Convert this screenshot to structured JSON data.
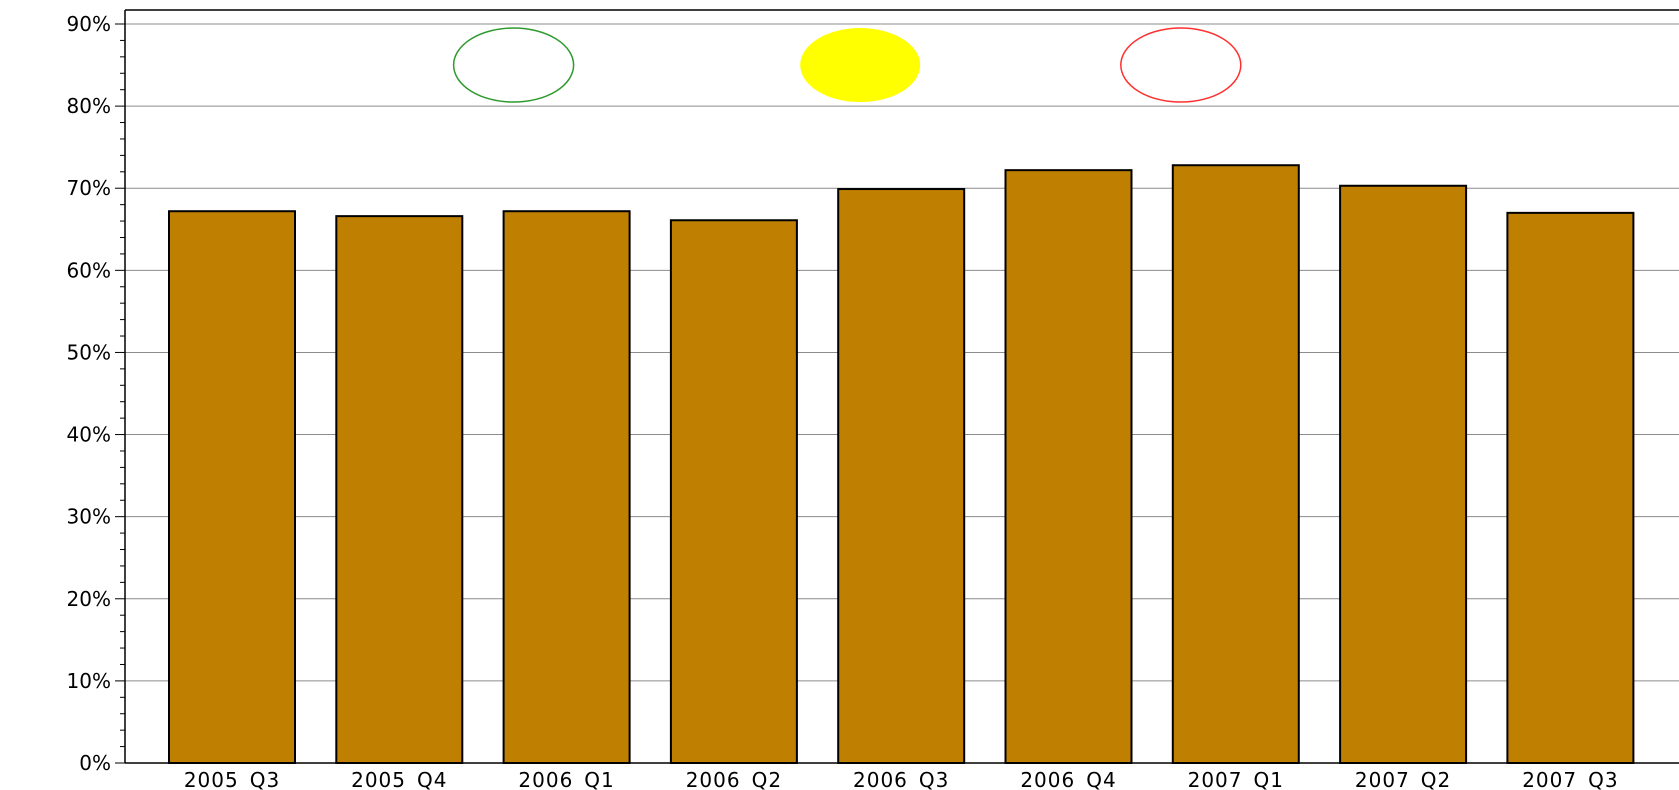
{
  "colors": {
    "bar_fill": "#bf7f00",
    "bar_stroke": "#000000",
    "grid": "#8c8c8c",
    "indicator_green": "#2e9a2e",
    "indicator_yellow": "#ffff00",
    "indicator_red": "#ff3030"
  },
  "chart_data": {
    "type": "bar",
    "title": "",
    "xlabel": "",
    "ylabel": "",
    "categories": [
      "2005_Q3",
      "2005_Q4",
      "2006_Q1",
      "2006_Q2",
      "2006_Q3",
      "2006_Q4",
      "2007_Q1",
      "2007_Q2",
      "2007_Q3"
    ],
    "values": [
      67.2,
      66.6,
      67.2,
      66.1,
      69.9,
      72.2,
      72.8,
      70.3,
      67.0
    ],
    "ylim": [
      0,
      90
    ],
    "yticks": [
      0,
      10,
      20,
      30,
      40,
      50,
      60,
      70,
      80,
      90
    ],
    "ytick_labels": [
      "0%",
      "10%",
      "20%",
      "30%",
      "40%",
      "50%",
      "60%",
      "70%",
      "80%",
      "90%"
    ],
    "grid": true,
    "indicators": [
      {
        "name": "green-indicator",
        "category": "2006_Q1",
        "y": 85,
        "style": "outline",
        "color": "#2e9a2e"
      },
      {
        "name": "yellow-indicator",
        "category": "2006_Q3",
        "y": 85,
        "style": "filled",
        "color": "#ffff00"
      },
      {
        "name": "red-indicator",
        "category": "2007_Q1",
        "y": 85,
        "style": "outline",
        "color": "#ff3030"
      }
    ]
  }
}
